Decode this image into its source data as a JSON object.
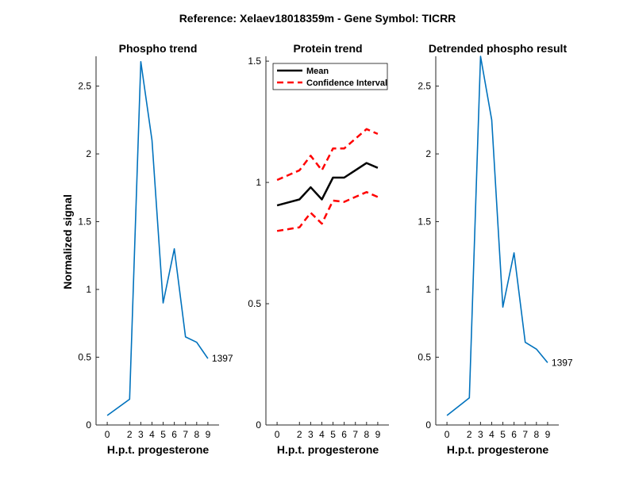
{
  "figure_title": "Reference:  Xelaev18018359m - Gene Symbol:  TICRR",
  "colors": {
    "phospho": "#0072BD",
    "mean": "#000000",
    "ci": "#FF0000"
  },
  "chart_data": [
    {
      "type": "line",
      "title": "Phospho trend",
      "xlabel": "H.p.t. progesterone",
      "ylabel": "Normalized signal",
      "x": [
        0,
        2,
        3,
        4,
        5,
        6,
        7,
        8,
        9
      ],
      "x_ticks": [
        "0",
        "2",
        "3",
        "4",
        "5",
        "6",
        "7",
        "8",
        "9"
      ],
      "ylim": [
        0,
        2.72
      ],
      "y_ticks": [
        0,
        0.5,
        1,
        1.5,
        2,
        2.5
      ],
      "y_tick_labels": [
        "0",
        "0.5",
        "1",
        "1.5",
        "2",
        "2.5"
      ],
      "series": [
        {
          "values": [
            0.07,
            0.19,
            2.68,
            2.1,
            0.9,
            1.3,
            0.65,
            0.61,
            0.49
          ]
        }
      ],
      "annotation": "1397"
    },
    {
      "type": "line",
      "title": "Protein trend",
      "xlabel": "H.p.t. progesterone",
      "ylabel": "",
      "x": [
        0,
        2,
        3,
        4,
        5,
        6,
        7,
        8,
        9
      ],
      "x_ticks": [
        "0",
        "2",
        "3",
        "4",
        "5",
        "6",
        "7",
        "8",
        "9"
      ],
      "ylim": [
        0,
        1.52
      ],
      "y_ticks": [
        0,
        0.5,
        1,
        1.5
      ],
      "y_tick_labels": [
        "0",
        "0.5",
        "1",
        "1.5"
      ],
      "legend_position": "top-left",
      "series": [
        {
          "name": "Mean",
          "style": "solid",
          "values": [
            0.905,
            0.93,
            0.98,
            0.93,
            1.02,
            1.02,
            1.05,
            1.08,
            1.06
          ]
        },
        {
          "name": "Confidence Interval",
          "style": "dashed",
          "values": [
            1.01,
            1.05,
            1.11,
            1.05,
            1.14,
            1.14,
            1.18,
            1.22,
            1.2
          ]
        },
        {
          "style": "dashed",
          "values": [
            0.8,
            0.815,
            0.875,
            0.83,
            0.925,
            0.92,
            0.94,
            0.96,
            0.94
          ]
        }
      ]
    },
    {
      "type": "line",
      "title": "Detrended phospho result",
      "xlabel": "H.p.t. progesterone",
      "ylabel": "",
      "x": [
        0,
        2,
        3,
        4,
        5,
        6,
        7,
        8,
        9
      ],
      "x_ticks": [
        "0",
        "2",
        "3",
        "4",
        "5",
        "6",
        "7",
        "8",
        "9"
      ],
      "ylim": [
        0,
        2.72
      ],
      "y_ticks": [
        0,
        0.5,
        1,
        1.5,
        2,
        2.5
      ],
      "y_tick_labels": [
        "0",
        "0.5",
        "1",
        "1.5",
        "2",
        "2.5"
      ],
      "series": [
        {
          "values": [
            0.07,
            0.2,
            2.72,
            2.25,
            0.87,
            1.27,
            0.61,
            0.56,
            0.46
          ]
        }
      ],
      "annotation": "1397"
    }
  ]
}
